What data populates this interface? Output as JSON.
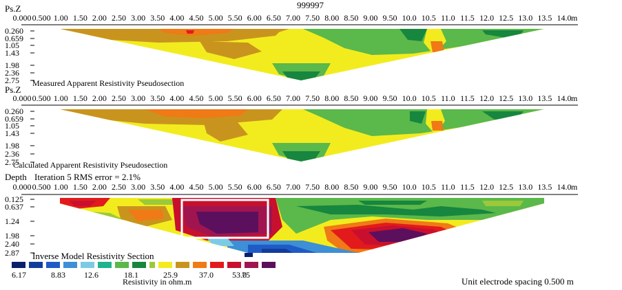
{
  "title": "999997",
  "unit_m": "m",
  "x_ticks": [
    "0.000",
    "0.500",
    "1.00",
    "1.50",
    "2.00",
    "2.50",
    "3.00",
    "3.50",
    "4.00",
    "4.50",
    "5.00",
    "5.50",
    "6.00",
    "6.50",
    "7.00",
    "7.50",
    "8.00",
    "8.50",
    "9.00",
    "9.50",
    "10.0",
    "10.5",
    "11.0",
    "11.5",
    "12.0",
    "12.5",
    "13.0",
    "13.5",
    "14.0"
  ],
  "panels": [
    {
      "id": "measured",
      "depth_label": "Ps.Z",
      "caption": "Measured Apparent Resistivity Pseudosection",
      "y_ticks": [
        "0.260",
        "0.659",
        "1.05",
        "1.43",
        "1.98",
        "2.36",
        "2.75"
      ]
    },
    {
      "id": "calculated",
      "depth_label": "Ps.Z",
      "caption": "Calculated Apparent Resistivity Pseudosection",
      "y_ticks": [
        "0.260",
        "0.659",
        "1.05",
        "1.43",
        "1.98",
        "2.36",
        "2.75"
      ]
    },
    {
      "id": "inverse",
      "depth_label": "Depth",
      "iteration_text": "Iteration 5 RMS error = 2.1%",
      "caption": "Inverse Model Resistivity Section",
      "y_ticks": [
        "0.125",
        "0.637",
        "1.24",
        "1.98",
        "2.40",
        "2.87"
      ]
    }
  ],
  "legend": {
    "colors": [
      "#0a1f6e",
      "#123c9c",
      "#1f5bc6",
      "#3d8fd6",
      "#7ccbe6",
      "#1eb48e",
      "#5bb84a",
      "#17863e",
      "#9bc93a",
      "#f2ec1e",
      "#c9941e",
      "#ef7a16",
      "#e31a1c",
      "#c8102e",
      "#a0154f",
      "#5c0f5c"
    ],
    "labels": [
      "6.17",
      "8.83",
      "12.6",
      "18.1",
      "25.9",
      "37.0",
      "53.0",
      "75"
    ],
    "title": "Resistivity in ohm.m"
  },
  "footer": "Unit electrode spacing 0.500 m",
  "chart_data": [
    {
      "type": "heatmap",
      "title": "Measured Apparent Resistivity Pseudosection",
      "x_range": [
        0.0,
        14.0
      ],
      "ylabel": "Ps.Z",
      "depth_levels": [
        0.26,
        0.659,
        1.05,
        1.43,
        1.98,
        2.36,
        2.75
      ],
      "annotation": "999997"
    },
    {
      "type": "heatmap",
      "title": "Calculated Apparent Resistivity Pseudosection",
      "x_range": [
        0.0,
        14.0
      ],
      "ylabel": "Ps.Z",
      "depth_levels": [
        0.26,
        0.659,
        1.05,
        1.43,
        1.98,
        2.36,
        2.75
      ]
    },
    {
      "type": "heatmap",
      "title": "Inverse Model Resistivity Section",
      "subtitle": "Iteration 5 RMS error = 2.1%",
      "x_range": [
        0.0,
        14.0
      ],
      "ylabel": "Depth",
      "depth_levels": [
        0.125,
        0.637,
        1.24,
        1.98,
        2.4,
        2.87
      ],
      "color_scale_ohm_m": [
        6.17,
        8.83,
        12.6,
        18.1,
        25.9,
        37.0,
        53.0,
        75
      ],
      "color_scale_label": "Resistivity in ohm.m"
    }
  ]
}
